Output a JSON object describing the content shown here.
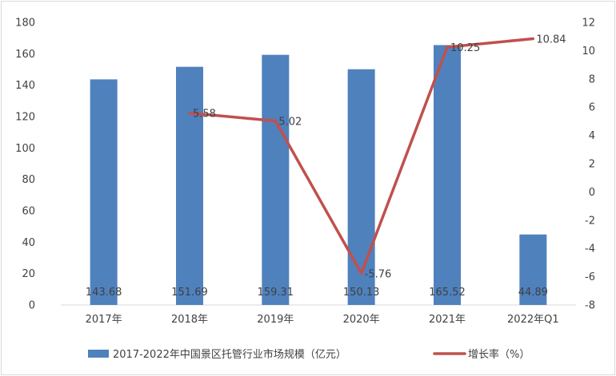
{
  "chart_data": {
    "type": "bar",
    "categories": [
      "2017年",
      "2018年",
      "2019年",
      "2020年",
      "2021年",
      "2022年Q1"
    ],
    "series": [
      {
        "name": "2017-2022年中国景区托管行业市场规模（亿元）",
        "type": "bar",
        "axis": "left",
        "color": "#4f81bd",
        "values": [
          143.68,
          151.69,
          159.31,
          150.13,
          165.52,
          44.89
        ],
        "labels": [
          "143.68",
          "151.69",
          "159.31",
          "150.13",
          "165.52",
          "44.89"
        ]
      },
      {
        "name": "增长率（%）",
        "type": "line",
        "axis": "right",
        "color": "#c0504d",
        "values": [
          null,
          5.58,
          5.02,
          -5.76,
          10.25,
          10.84
        ],
        "labels": [
          "",
          "5.58",
          "5.02",
          "-5.76",
          "10.25",
          "10.84"
        ]
      }
    ],
    "y_left": {
      "ylim": [
        0,
        180
      ],
      "ticks": [
        0,
        20,
        40,
        60,
        80,
        100,
        120,
        140,
        160,
        180
      ]
    },
    "y_right": {
      "ylim": [
        -8,
        12
      ],
      "ticks": [
        -8,
        -6,
        -4,
        -2,
        0,
        2,
        4,
        6,
        8,
        10,
        12
      ]
    },
    "grid": false,
    "legend_position": "bottom"
  }
}
